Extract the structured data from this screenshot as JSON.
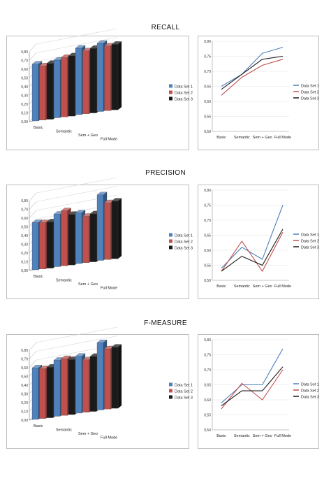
{
  "titles": [
    "RECALL",
    "PRECISION",
    "F-MEASURE"
  ],
  "chart_data": [
    {
      "type": "bar",
      "title": "RECALL",
      "categories": [
        "Basic",
        "Semantic",
        "Sem + Geo",
        "Full Mode"
      ],
      "series": [
        {
          "name": "Data Set 1",
          "values": [
            0.65,
            0.66,
            0.76,
            0.78
          ]
        },
        {
          "name": "Data Set 2",
          "values": [
            0.62,
            0.68,
            0.72,
            0.74
          ]
        },
        {
          "name": "Data Set 3",
          "values": [
            0.64,
            0.69,
            0.74,
            0.75
          ]
        }
      ],
      "ylim": [
        0,
        0.8
      ],
      "yticks": [
        "0,00",
        "0,10",
        "0,20",
        "0,30",
        "0,40",
        "0,50",
        "0,60",
        "0,70",
        "0,80"
      ],
      "legend": "right",
      "colors": [
        "#4f81bd",
        "#c0504d",
        "#1a1a1a"
      ]
    },
    {
      "type": "line",
      "title": "RECALL",
      "categories": [
        "Basic",
        "Semantic",
        "Sem + Geo",
        "Full Mode"
      ],
      "series": [
        {
          "name": "Data Set 1",
          "values": [
            0.65,
            0.69,
            0.76,
            0.78
          ]
        },
        {
          "name": "Data Set 2",
          "values": [
            0.62,
            0.68,
            0.72,
            0.74
          ]
        },
        {
          "name": "Data Set 3",
          "values": [
            0.64,
            0.69,
            0.74,
            0.75
          ]
        }
      ],
      "ylim": [
        0.5,
        0.8
      ],
      "yticks": [
        "0,50",
        "0,55",
        "0,60",
        "0,65",
        "0,70",
        "0,75",
        "0,80"
      ],
      "legend": "right",
      "colors": [
        "#4f81bd",
        "#c0504d",
        "#1a1a1a"
      ]
    },
    {
      "type": "bar",
      "title": "PRECISION",
      "categories": [
        "Basic",
        "Semantic",
        "Sem + Geo",
        "Full Mode"
      ],
      "series": [
        {
          "name": "Data Set 1",
          "values": [
            0.54,
            0.6,
            0.58,
            0.75
          ]
        },
        {
          "name": "Data Set 2",
          "values": [
            0.53,
            0.63,
            0.53,
            0.65
          ]
        },
        {
          "name": "Data Set 3",
          "values": [
            0.53,
            0.58,
            0.55,
            0.66
          ]
        }
      ],
      "ylim": [
        0,
        0.8
      ],
      "yticks": [
        "0,00",
        "0,10",
        "0,20",
        "0,30",
        "0,40",
        "0,50",
        "0,60",
        "0,70",
        "0,80"
      ],
      "legend": "right",
      "colors": [
        "#4f81bd",
        "#c0504d",
        "#1a1a1a"
      ]
    },
    {
      "type": "line",
      "title": "PRECISION",
      "categories": [
        "Basic",
        "Semantic",
        "Sem + Geo",
        "Full Mode"
      ],
      "series": [
        {
          "name": "Data Set 1",
          "values": [
            0.54,
            0.61,
            0.57,
            0.75
          ]
        },
        {
          "name": "Data Set 2",
          "values": [
            0.53,
            0.63,
            0.53,
            0.66
          ]
        },
        {
          "name": "Data Set 3",
          "values": [
            0.53,
            0.58,
            0.55,
            0.67
          ]
        }
      ],
      "ylim": [
        0.5,
        0.8
      ],
      "yticks": [
        "0,50",
        "0,55",
        "0,60",
        "0,65",
        "0,70",
        "0,75",
        "0,80"
      ],
      "legend": "right",
      "colors": [
        "#4f81bd",
        "#c0504d",
        "#1a1a1a"
      ]
    },
    {
      "type": "bar",
      "title": "F-MEASURE",
      "categories": [
        "Basic",
        "Semantic",
        "Sem + Geo",
        "Full Mode"
      ],
      "series": [
        {
          "name": "Data Set 1",
          "values": [
            0.59,
            0.64,
            0.65,
            0.77
          ]
        },
        {
          "name": "Data Set 2",
          "values": [
            0.57,
            0.65,
            0.6,
            0.69
          ]
        },
        {
          "name": "Data Set 3",
          "values": [
            0.58,
            0.63,
            0.63,
            0.7
          ]
        }
      ],
      "ylim": [
        0,
        0.8
      ],
      "yticks": [
        "0,00",
        "0,10",
        "0,20",
        "0,30",
        "0,40",
        "0,50",
        "0,60",
        "0,70",
        "0,80"
      ],
      "legend": "right",
      "colors": [
        "#4f81bd",
        "#c0504d",
        "#1a1a1a"
      ]
    },
    {
      "type": "line",
      "title": "F-MEASURE",
      "categories": [
        "Basic",
        "Semantic",
        "Sem + Geo",
        "Full Mode"
      ],
      "series": [
        {
          "name": "Data Set 1",
          "values": [
            0.59,
            0.65,
            0.65,
            0.77
          ]
        },
        {
          "name": "Data Set 2",
          "values": [
            0.57,
            0.655,
            0.6,
            0.7
          ]
        },
        {
          "name": "Data Set 3",
          "values": [
            0.58,
            0.63,
            0.63,
            0.71
          ]
        }
      ],
      "ylim": [
        0.5,
        0.8
      ],
      "yticks": [
        "0,50",
        "0,55",
        "0,60",
        "0,65",
        "0,70",
        "0,75",
        "0,80"
      ],
      "legend": "right",
      "colors": [
        "#4f81bd",
        "#c0504d",
        "#1a1a1a"
      ]
    }
  ]
}
